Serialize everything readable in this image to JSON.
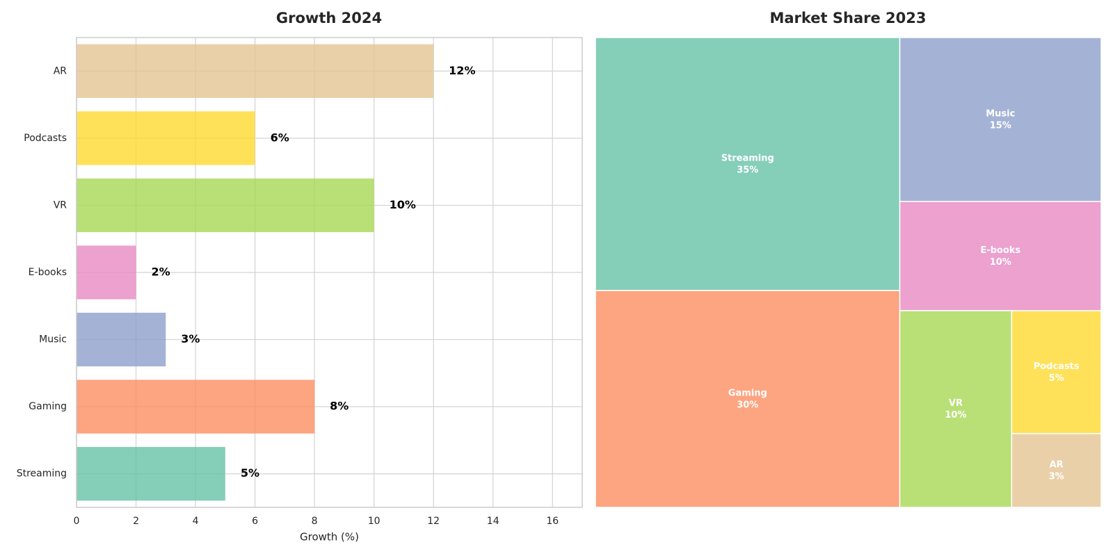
{
  "chart_data": [
    {
      "type": "bar",
      "orientation": "horizontal",
      "title": "Growth 2024",
      "xlabel": "Growth (%)",
      "ylabel": "",
      "categories": [
        "Streaming",
        "Gaming",
        "Music",
        "E-books",
        "VR",
        "Podcasts",
        "AR"
      ],
      "values": [
        5,
        8,
        3,
        2,
        10,
        6,
        12
      ],
      "value_labels": [
        "5%",
        "8%",
        "3%",
        "2%",
        "10%",
        "6%",
        "12%"
      ],
      "xlim": [
        0,
        17
      ],
      "xticks": [
        0,
        2,
        4,
        6,
        8,
        10,
        12,
        14,
        16
      ],
      "grid": true,
      "colors": [
        "#66c2a5",
        "#fc8d62",
        "#8da0cb",
        "#e78ac3",
        "#a6d854",
        "#ffd92f",
        "#e5c494"
      ]
    },
    {
      "type": "treemap",
      "title": "Market Share 2023",
      "items": [
        {
          "name": "Streaming",
          "value": 35,
          "label": "35%",
          "color": "#66c2a5"
        },
        {
          "name": "Gaming",
          "value": 30,
          "label": "30%",
          "color": "#fc8d62"
        },
        {
          "name": "Music",
          "value": 15,
          "label": "15%",
          "color": "#8da0cb"
        },
        {
          "name": "E-books",
          "value": 10,
          "label": "10%",
          "color": "#e78ac3"
        },
        {
          "name": "VR",
          "value": 10,
          "label": "10%",
          "color": "#a6d854"
        },
        {
          "name": "Podcasts",
          "value": 5,
          "label": "5%",
          "color": "#ffd92f"
        },
        {
          "name": "AR",
          "value": 3,
          "label": "3%",
          "color": "#e5c494"
        }
      ]
    }
  ]
}
